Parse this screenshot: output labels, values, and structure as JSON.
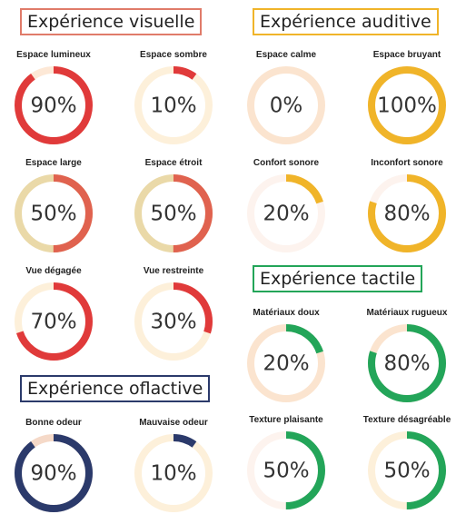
{
  "chart_data": {
    "type": "gauge",
    "colors": {
      "visual": "#e03a3a",
      "audio": "#f0b429",
      "tactile": "#23a559",
      "olfactive": "#2b3a6b"
    },
    "sections": [
      {
        "id": "visual",
        "title": "Expérience visuelle",
        "border_color": "#e07b6a",
        "gauges": [
          {
            "label": "Espace lumineux",
            "value": 90,
            "display": "90%",
            "color": "#e03a3a",
            "track": "#fde8d6"
          },
          {
            "label": "Espace sombre",
            "value": 10,
            "display": "10%",
            "color": "#e03a3a",
            "track": "#fdf0da"
          },
          {
            "label": "Espace large",
            "value": 50,
            "display": "50%",
            "color": "#e0624f",
            "track": "#ead9a8"
          },
          {
            "label": "Espace étroit",
            "value": 50,
            "display": "50%",
            "color": "#e0624f",
            "track": "#ead9a8"
          },
          {
            "label": "Vue dégagée",
            "value": 70,
            "display": "70%",
            "color": "#e03a3a",
            "track": "#fdf0da"
          },
          {
            "label": "Vue restreinte",
            "value": 30,
            "display": "30%",
            "color": "#e03a3a",
            "track": "#fdf0da"
          }
        ]
      },
      {
        "id": "audio",
        "title": "Expérience auditive",
        "border_color": "#f0b429",
        "gauges": [
          {
            "label": "Espace calme",
            "value": 0,
            "display": "0%",
            "color": "#f0b429",
            "track": "#fbe4cf"
          },
          {
            "label": "Espace bruyant",
            "value": 100,
            "display": "100%",
            "color": "#f0b429",
            "track": "#fbe4cf"
          },
          {
            "label": "Confort sonore",
            "value": 20,
            "display": "20%",
            "color": "#f0b429",
            "track": "#fdf3ee"
          },
          {
            "label": "Inconfort sonore",
            "value": 80,
            "display": "80%",
            "color": "#f0b429",
            "track": "#fdf3ee"
          }
        ]
      },
      {
        "id": "tactile",
        "title": "Expérience tactile",
        "border_color": "#23a559",
        "gauges": [
          {
            "label": "Matériaux doux",
            "value": 20,
            "display": "20%",
            "color": "#23a559",
            "track": "#fbe4cf"
          },
          {
            "label": "Matériaux rugueux",
            "value": 80,
            "display": "80%",
            "color": "#23a559",
            "track": "#fbe4cf"
          },
          {
            "label": "Texture plaisante",
            "value": 50,
            "display": "50%",
            "color": "#23a559",
            "track": "#fdf3ee"
          },
          {
            "label": "Texture désagréable",
            "value": 50,
            "display": "50%",
            "color": "#23a559",
            "track": "#fdf0da"
          }
        ]
      },
      {
        "id": "olfactive",
        "title": "Expérience oflactive",
        "border_color": "#2b3a6b",
        "gauges": [
          {
            "label": "Bonne odeur",
            "value": 90,
            "display": "90%",
            "color": "#2b3a6b",
            "track": "#f5d9c8"
          },
          {
            "label": "Mauvaise odeur",
            "value": 10,
            "display": "10%",
            "color": "#2b3a6b",
            "track": "#fdf0da"
          }
        ]
      }
    ]
  }
}
